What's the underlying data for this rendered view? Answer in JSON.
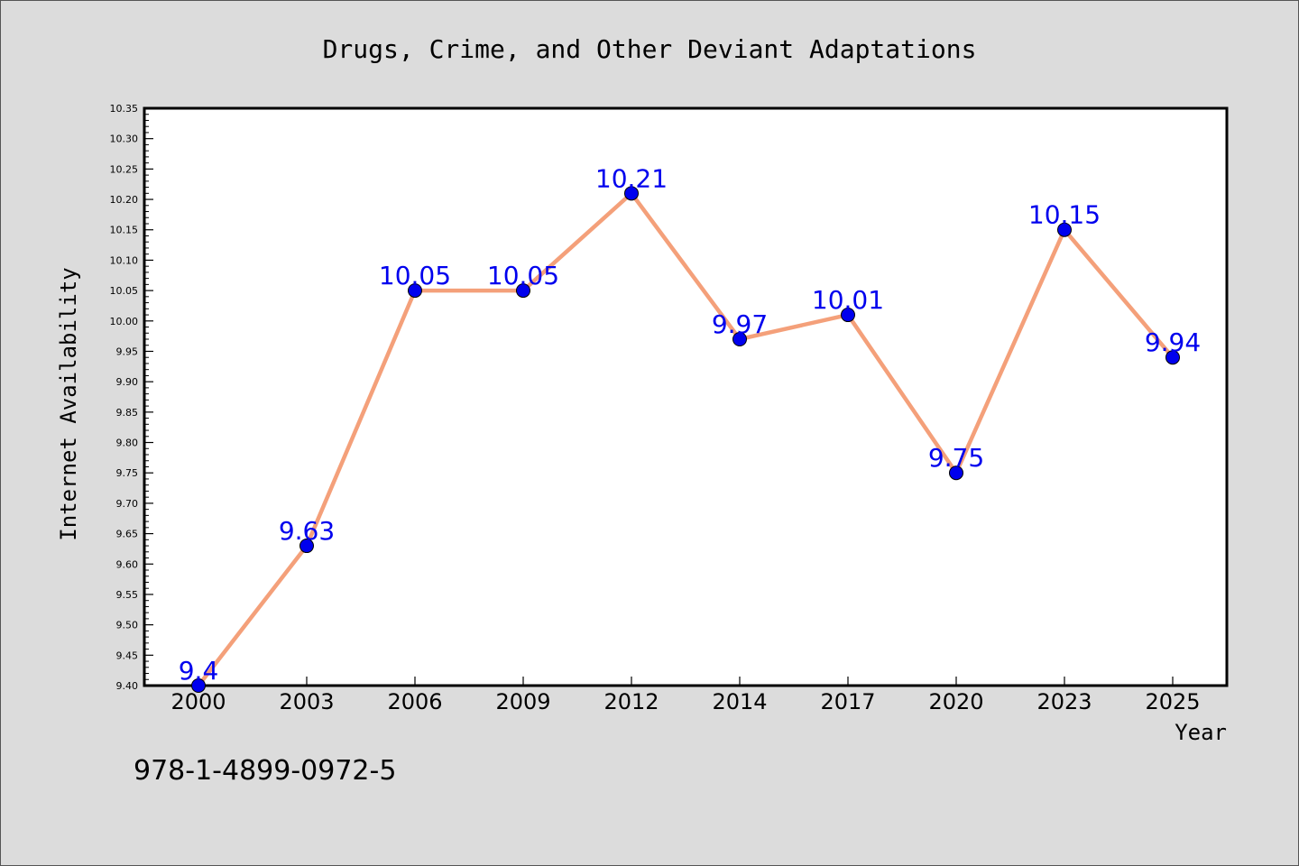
{
  "chart_data": {
    "type": "line",
    "title": "Drugs, Crime, and Other Deviant Adaptations",
    "xlabel": "Year",
    "ylabel": "Internet Availability",
    "categories": [
      "2000",
      "2003",
      "2006",
      "2009",
      "2012",
      "2014",
      "2017",
      "2020",
      "2023",
      "2025"
    ],
    "series": [
      {
        "values": [
          9.4,
          9.63,
          10.05,
          10.05,
          10.21,
          9.97,
          10.01,
          9.75,
          10.15,
          9.94
        ],
        "labels": [
          "9.4",
          "9.63",
          "10.05",
          "10.05",
          "10.21",
          "9.97",
          "10.01",
          "9.75",
          "10.15",
          "9.94"
        ],
        "line_color": "#f4a07a",
        "marker_color": "#0000ee",
        "label_color": "#0000ee"
      }
    ],
    "ylim": [
      9.4,
      10.35
    ],
    "y_major_step": 0.05,
    "y_tick_labels": [
      "9.40",
      "9.45",
      "9.50",
      "9.55",
      "9.60",
      "9.65",
      "9.70",
      "9.75",
      "9.80",
      "9.85",
      "9.90",
      "9.95",
      "10.00",
      "10.05",
      "10.10",
      "10.15",
      "10.20",
      "10.25",
      "10.30",
      "10.35"
    ],
    "grid": false,
    "legend": "none",
    "background": "#dcdcdc",
    "plot_background": "#ffffff"
  },
  "annotation": "978-1-4899-0972-5"
}
